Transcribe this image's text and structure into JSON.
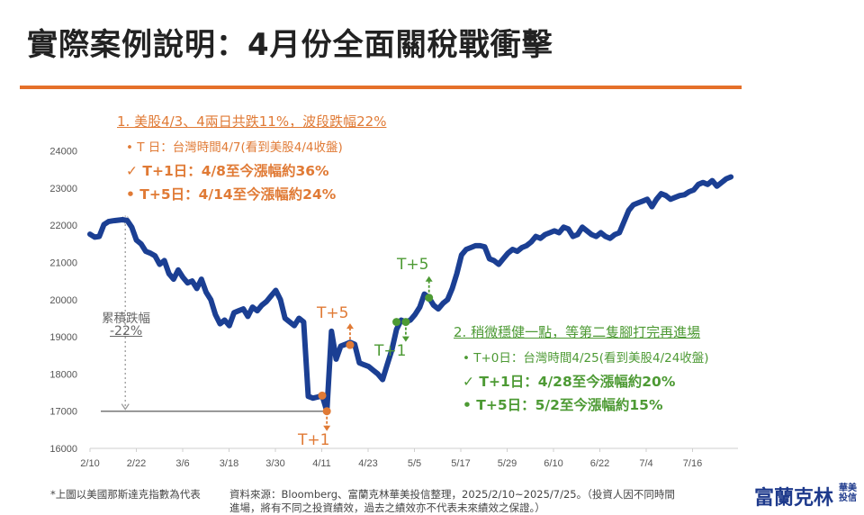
{
  "title": "實際案例說明：4月份全面關稅戰衝擊",
  "colors": {
    "accent": "#e5702a",
    "line": "#1b3f93",
    "orange": "#e07a35",
    "green": "#4d9a34"
  },
  "annotations": {
    "o_head": "1. 美股4/3、4兩日共跌11%，波段跌幅22%",
    "o_t": "•   T      日：台灣時間4/7(看到美股4/4收盤)",
    "o_t1": "✓  T+1日：4/8至今漲幅約36%",
    "o_t5": "•  T+5日：4/14至今漲幅約24%",
    "g_head": "2. 稍微穩健一點，等第二隻腳打完再進場",
    "g_t0": "•  T+0日：台灣時間4/25(看到美股4/24收盤)",
    "g_t1": "✓  T+1日：4/28至今漲幅約20%",
    "g_t5": "•  T+5日：5/2至今漲幅約15%",
    "cum_label": "累積跌幅",
    "cum_value": "-22%",
    "mk_o_t5": "T+5",
    "mk_o_t1": "T+1",
    "mk_g_t5": "T+5",
    "mk_g_t1": "T+1"
  },
  "footer": {
    "note": "*上圖以美國那斯達克指數為代表",
    "source": "資料來源：Bloomberg、富蘭克林華美投信整理，2025/2/10~2025/7/25。（投資人因不同時間",
    "source2": "進場，將有不同之投資績效，過去之績效亦不代表未來績效之保證。）"
  },
  "logo": {
    "name": "富蘭克林",
    "sub": "華美投信"
  },
  "chart_data": {
    "type": "line",
    "title": "",
    "xlabel": "",
    "ylabel": "",
    "x_ticks": [
      "2/10",
      "2/22",
      "3/6",
      "3/18",
      "3/30",
      "4/11",
      "4/23",
      "5/5",
      "5/17",
      "5/29",
      "6/10",
      "6/22",
      "7/4",
      "7/16"
    ],
    "y_ticks": [
      16000,
      17000,
      18000,
      19000,
      20000,
      21000,
      22000,
      23000,
      24000
    ],
    "ylim": [
      16000,
      24000
    ],
    "x_range_days": [
      0,
      166
    ],
    "series": [
      {
        "name": "那斯達克指數",
        "points": [
          [
            0,
            21760
          ],
          [
            1,
            21680
          ],
          [
            2,
            21700
          ],
          [
            3,
            22020
          ],
          [
            4,
            22100
          ],
          [
            5,
            22120
          ],
          [
            7,
            22150
          ],
          [
            8,
            22130
          ],
          [
            9,
            21950
          ],
          [
            10,
            21600
          ],
          [
            11,
            21500
          ],
          [
            12,
            21300
          ],
          [
            13,
            21250
          ],
          [
            14,
            21180
          ],
          [
            15,
            20950
          ],
          [
            16,
            21050
          ],
          [
            17,
            20700
          ],
          [
            18,
            20550
          ],
          [
            19,
            20800
          ],
          [
            20,
            20600
          ],
          [
            21,
            20450
          ],
          [
            22,
            20500
          ],
          [
            23,
            20300
          ],
          [
            24,
            20550
          ],
          [
            25,
            20200
          ],
          [
            26,
            20000
          ],
          [
            27,
            19600
          ],
          [
            28,
            19350
          ],
          [
            29,
            19450
          ],
          [
            30,
            19300
          ],
          [
            31,
            19650
          ],
          [
            32,
            19700
          ],
          [
            33,
            19750
          ],
          [
            34,
            19550
          ],
          [
            35,
            19800
          ],
          [
            36,
            19700
          ],
          [
            37,
            19850
          ],
          [
            38,
            19950
          ],
          [
            39,
            20100
          ],
          [
            40,
            20250
          ],
          [
            41,
            20000
          ],
          [
            42,
            19500
          ],
          [
            43,
            19400
          ],
          [
            44,
            19300
          ],
          [
            45,
            19500
          ],
          [
            46,
            19400
          ],
          [
            47,
            17400
          ],
          [
            48,
            17350
          ],
          [
            49,
            17380
          ],
          [
            50,
            17420
          ],
          [
            51,
            17000
          ],
          [
            52,
            19150
          ],
          [
            53,
            18400
          ],
          [
            54,
            18750
          ],
          [
            55,
            18800
          ],
          [
            56,
            18850
          ],
          [
            57,
            18800
          ],
          [
            58,
            18300
          ],
          [
            59,
            18250
          ],
          [
            60,
            18200
          ],
          [
            61,
            18100
          ],
          [
            62,
            18000
          ],
          [
            63,
            17850
          ],
          [
            64,
            18250
          ],
          [
            65,
            18650
          ],
          [
            66,
            19200
          ],
          [
            67,
            19450
          ],
          [
            68,
            19400
          ],
          [
            69,
            19450
          ],
          [
            70,
            19600
          ],
          [
            71,
            19800
          ],
          [
            72,
            20150
          ],
          [
            73,
            20050
          ],
          [
            74,
            19850
          ],
          [
            75,
            19750
          ],
          [
            76,
            19900
          ],
          [
            77,
            20000
          ],
          [
            78,
            20300
          ],
          [
            79,
            20700
          ],
          [
            80,
            21200
          ],
          [
            81,
            21350
          ],
          [
            82,
            21400
          ],
          [
            83,
            21450
          ],
          [
            84,
            21450
          ],
          [
            85,
            21420
          ],
          [
            86,
            21100
          ],
          [
            87,
            21050
          ],
          [
            88,
            20950
          ],
          [
            89,
            21100
          ],
          [
            90,
            21250
          ],
          [
            91,
            21350
          ],
          [
            92,
            21300
          ],
          [
            93,
            21400
          ],
          [
            94,
            21450
          ],
          [
            95,
            21550
          ],
          [
            96,
            21700
          ],
          [
            97,
            21650
          ],
          [
            98,
            21750
          ],
          [
            99,
            21800
          ],
          [
            100,
            21850
          ],
          [
            101,
            21800
          ],
          [
            102,
            21950
          ],
          [
            103,
            21900
          ],
          [
            104,
            21700
          ],
          [
            105,
            21750
          ],
          [
            106,
            21950
          ],
          [
            107,
            21850
          ],
          [
            108,
            21750
          ],
          [
            109,
            21700
          ],
          [
            110,
            21800
          ],
          [
            111,
            21700
          ],
          [
            112,
            21650
          ],
          [
            113,
            21750
          ],
          [
            114,
            21800
          ],
          [
            115,
            22100
          ],
          [
            116,
            22400
          ],
          [
            117,
            22550
          ],
          [
            118,
            22600
          ],
          [
            119,
            22650
          ],
          [
            120,
            22700
          ],
          [
            121,
            22500
          ],
          [
            122,
            22700
          ],
          [
            123,
            22850
          ],
          [
            124,
            22800
          ],
          [
            125,
            22700
          ],
          [
            126,
            22750
          ],
          [
            127,
            22800
          ],
          [
            128,
            22820
          ],
          [
            129,
            22900
          ],
          [
            130,
            22950
          ],
          [
            131,
            23100
          ],
          [
            132,
            23150
          ],
          [
            133,
            23100
          ],
          [
            134,
            23200
          ],
          [
            135,
            23050
          ],
          [
            136,
            23150
          ],
          [
            137,
            23250
          ],
          [
            138,
            23300
          ]
        ]
      }
    ],
    "markers": [
      {
        "day": 51,
        "value": 17000,
        "color": "#e07a35",
        "arrow": "down"
      },
      {
        "day": 50,
        "value": 17420,
        "color": "#e07a35",
        "arrow": "none"
      },
      {
        "day": 56,
        "value": 18780,
        "color": "#e07a35",
        "arrow": "up"
      },
      {
        "day": 68,
        "value": 19400,
        "color": "#4d9a34",
        "arrow": "down"
      },
      {
        "day": 66,
        "value": 19400,
        "color": "#4d9a34",
        "arrow": "none"
      },
      {
        "day": 73,
        "value": 20050,
        "color": "#4d9a34",
        "arrow": "up"
      }
    ]
  }
}
